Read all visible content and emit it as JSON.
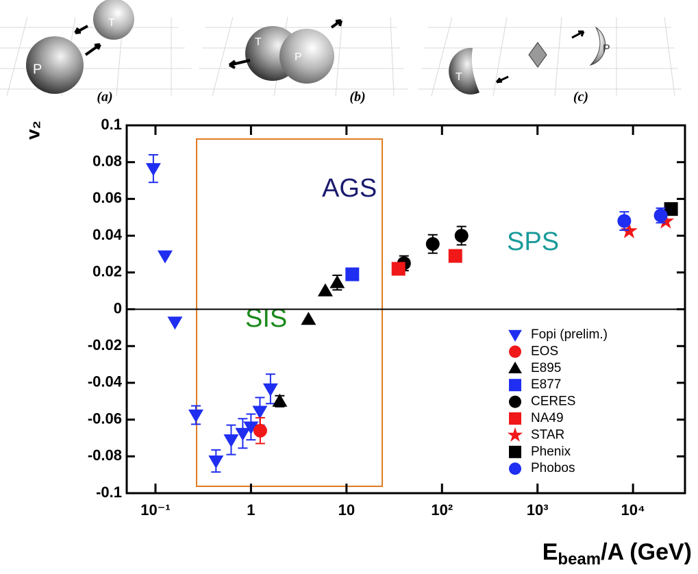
{
  "illustration": {
    "panels": [
      {
        "label": "(a)",
        "nuclei": [
          "T",
          "P"
        ]
      },
      {
        "label": "(b)",
        "nuclei": [
          "T",
          "P"
        ]
      },
      {
        "label": "(c)",
        "nuclei": [
          "T",
          "P"
        ]
      }
    ]
  },
  "chart_data": {
    "type": "scatter",
    "y_label": "v₂",
    "x_label": {
      "main": "E",
      "sub": "beam",
      "rest": "/A (GeV)"
    },
    "log_x": true,
    "xlim": [
      0.05,
      35000
    ],
    "xticks": [
      {
        "value": 0.1,
        "label": "10⁻¹"
      },
      1,
      10,
      {
        "value": 100,
        "label": "10²"
      },
      {
        "value": 1000,
        "label": "10³"
      },
      {
        "value": 10000,
        "label": "10⁴"
      }
    ],
    "ylim": [
      -0.1,
      0.1
    ],
    "yticks": [
      -0.1,
      -0.08,
      -0.06,
      -0.04,
      -0.02,
      0,
      0.02,
      0.04,
      0.06,
      0.08,
      0.1
    ],
    "zero_line": true,
    "legend": "lower right",
    "annotations": [
      {
        "text": "AGS",
        "color": "#1a1a6e"
      },
      {
        "text": "SPS",
        "color": "#1a9a9a"
      },
      {
        "text": "SIS",
        "color": "#1a8a1a"
      }
    ],
    "series": [
      {
        "name": "Fopi (prelim.)",
        "color": "#1f2ef0",
        "marker": "triangle-down",
        "x": [
          0.095,
          0.126,
          0.16,
          0.265,
          0.43,
          0.62,
          0.82,
          1.0,
          1.24,
          1.6
        ],
        "values": [
          0.0765,
          0.029,
          -0.007,
          -0.0575,
          -0.0825,
          -0.071,
          -0.0675,
          -0.064,
          -0.0555,
          -0.0433
        ],
        "errors": [
          0.0075,
          null,
          null,
          0.005,
          0.006,
          0.008,
          0.008,
          0.007,
          0.0075,
          0.008
        ]
      },
      {
        "name": "EOS",
        "color": "#f01818",
        "marker": "circle",
        "x": [
          1.25
        ],
        "values": [
          -0.066
        ],
        "errors": [
          0.007
        ]
      },
      {
        "name": "E895",
        "color": "#000000",
        "marker": "triangle-up",
        "x": [
          2,
          4,
          6,
          8
        ],
        "values": [
          -0.05,
          -0.0055,
          0.01,
          0.0145
        ],
        "errors": [
          0.003,
          null,
          null,
          0.004
        ]
      },
      {
        "name": "E877",
        "color": "#1f2ef0",
        "marker": "square",
        "x": [
          11.5
        ],
        "values": [
          0.019
        ],
        "errors": [
          null
        ]
      },
      {
        "name": "CERES",
        "color": "#000000",
        "marker": "circle",
        "x": [
          40,
          80,
          160
        ],
        "values": [
          0.025,
          0.0355,
          0.04
        ],
        "errors": [
          0.004,
          0.005,
          0.005
        ]
      },
      {
        "name": "NA49",
        "color": "#f01818",
        "marker": "square",
        "x": [
          35,
          138
        ],
        "values": [
          0.022,
          0.029
        ],
        "errors": [
          null,
          null
        ]
      },
      {
        "name": "STAR",
        "color": "#f01818",
        "marker": "star",
        "x": [
          9100,
          22000
        ],
        "values": [
          0.0425,
          0.0478
        ],
        "errors": [
          null,
          null
        ]
      },
      {
        "name": "Phenix",
        "color": "#000000",
        "marker": "square",
        "x": [
          25000
        ],
        "values": [
          0.0545
        ],
        "errors": [
          0.003
        ]
      },
      {
        "name": "Phobos",
        "color": "#1f2ef0",
        "marker": "circle",
        "x": [
          8100,
          19500
        ],
        "values": [
          0.048,
          0.051
        ],
        "errors": [
          0.005,
          0.004
        ]
      }
    ]
  }
}
